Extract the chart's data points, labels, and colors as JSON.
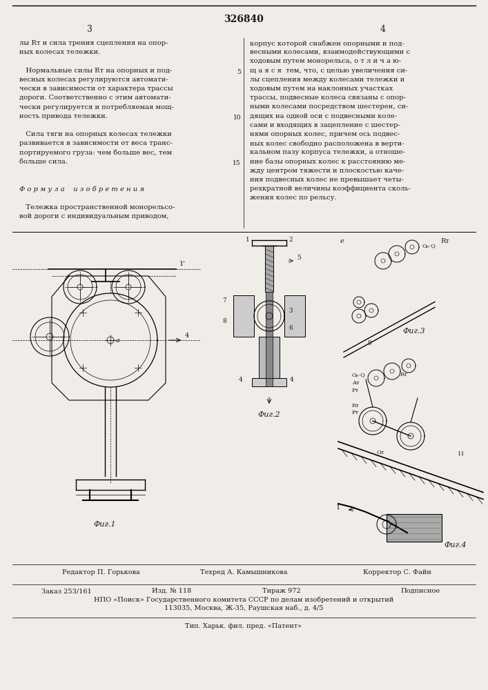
{
  "title": "326840",
  "bg_color": "#f0ede8",
  "text_color": "#1a1a1a",
  "page_left": "3",
  "page_right": "4",
  "col1_lines": [
    "лы Rᴛ и сила трения сцепления на опор-",
    "ных колесах тележки.",
    "",
    "   Нормальные силы Rᴛ на опорных и под-",
    "весных колесах регулируются автомати-",
    "чески в зависимости от характера трассы",
    "дороги. Соответственно с этим автомати-",
    "чески регулируется и потребляемая мощ-",
    "ность привода тележки.",
    "",
    "   Сила тяги на опорных колесах тележки",
    "развивается в зависимости от веса транс-",
    "портируемого груза: чем больше вес, тем",
    "больше сила.",
    "",
    "",
    "Ф о р м у л а    и з о б р е т е н и я",
    "",
    "   Тележка пространственной монорельсо-",
    "вой дороги с индивидуальным приводом,"
  ],
  "col2_lines": [
    "корпус которой снабжен опорными и под-",
    "весными колесами, взаимодействующими с",
    "ходовым путем монорельса, о т л и ч а ю-",
    "щ а я с я  тем, что, с целью увеличения си-",
    "лы сцепления между колесами тележки и",
    "ходовым путем на наклонных участках",
    "трассы, подвесные колеса связаны с опор-",
    "ными колесами посредством шестерен, си-",
    "дящих на одной оси с подвесными коле-",
    "сами и входящих в зацепление с шестер-",
    "нями опорных колес, причем ось подвес-",
    "ных колес свободно расположена в верти-",
    "кальном пазу корпуса тележки, а отноше-",
    "ние базы опорных колес к расстоянию ме-",
    "жду центром тяжести и плоскостью каче-",
    "ния подвесных колес не превышает четы-",
    "рехкратной величины коэффициента сколь-",
    "жения колес по рельсу."
  ],
  "footer1": "Редактор П. Горькова",
  "footer1m": "Техред А. Камышникова",
  "footer1r": "Корректор С. Файн",
  "footer2a": "Заказ 253/161",
  "footer2b": "Изд. № 118",
  "footer2c": "Тираж 972",
  "footer2d": "Подписное",
  "footer3": "НПО «Поиск» Государственного комитета СССР по делам изобретений и открытий",
  "footer4": "113035, Москва, Ж-35, Раушская наб., д. 4/5",
  "footer5": "Тип. Харьк. фил. пред. «Патент»"
}
